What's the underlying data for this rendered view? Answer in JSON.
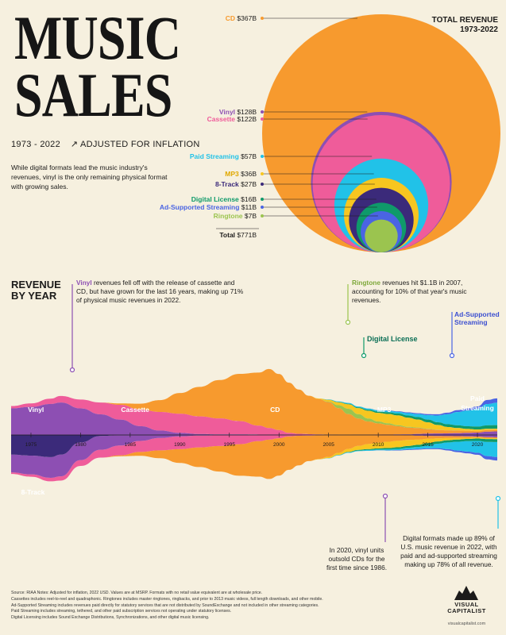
{
  "header": {
    "title_line1": "MUSIC",
    "title_line2": "SALES",
    "years": "1973 - 2022",
    "adjusted": "ADJUSTED FOR INFLATION",
    "intro": "While digital formats lead the music industry's revenues, vinyl is the only remaining physical format with growing sales."
  },
  "total_revenue": {
    "title_line1": "TOTAL REVENUE",
    "title_line2": "1973-2022"
  },
  "colors": {
    "background": "#f6f0df",
    "cd": "#f79a2e",
    "vinyl": "#8d4fb3",
    "cassette": "#ef5c9a",
    "paid_streaming": "#21c2e8",
    "mp3": "#f7c620",
    "eight_track": "#3b2a7a",
    "digital_license": "#0f9a6a",
    "ad_supported": "#4a64e3",
    "ringtone": "#9bc44f"
  },
  "chart_data": [
    {
      "type": "bubble",
      "title": "TOTAL REVENUE 1973-2022",
      "unit": "B",
      "series": [
        {
          "name": "CD",
          "label": "$367B",
          "value": 367
        },
        {
          "name": "Vinyl",
          "label": "$128B",
          "value": 128
        },
        {
          "name": "Cassette",
          "label": "$122B",
          "value": 122
        },
        {
          "name": "Paid Streaming",
          "label": "$57B",
          "value": 57
        },
        {
          "name": "MP3",
          "label": "$36B",
          "value": 36
        },
        {
          "name": "8-Track",
          "label": "$27B",
          "value": 27
        },
        {
          "name": "Digital License",
          "label": "$16B",
          "value": 16
        },
        {
          "name": "Ad-Supported Streaming",
          "label": "$11B",
          "value": 11
        },
        {
          "name": "Ringtone",
          "label": "$7B",
          "value": 7
        }
      ],
      "total": {
        "name": "Total",
        "label": "$771B",
        "value": 771
      }
    },
    {
      "type": "area",
      "title": "REVENUE BY YEAR",
      "x": [
        1973,
        1975,
        1977,
        1978,
        1980,
        1982,
        1984,
        1986,
        1988,
        1990,
        1992,
        1994,
        1996,
        1998,
        1999,
        2000,
        2001,
        2002,
        2003,
        2004,
        2005,
        2006,
        2007,
        2008,
        2009,
        2010,
        2011,
        2012,
        2013,
        2014,
        2015,
        2016,
        2017,
        2018,
        2019,
        2020,
        2021,
        2022
      ],
      "xticks": [
        "1975",
        "1980",
        "1985",
        "1990",
        "1995",
        "2000",
        "2005",
        "2010",
        "2015",
        "2020"
      ],
      "series": [
        {
          "name": "Vinyl",
          "values": [
            9,
            9.5,
            10.5,
            11,
            9,
            7,
            5.2,
            3,
            1.5,
            0.7,
            0.3,
            0.2,
            0.2,
            0.15,
            0.15,
            0.15,
            0.1,
            0.1,
            0.08,
            0.08,
            0.06,
            0.05,
            0.04,
            0.06,
            0.07,
            0.1,
            0.12,
            0.17,
            0.2,
            0.35,
            0.45,
            0.5,
            0.55,
            0.6,
            0.7,
            0.8,
            1.1,
            1.2
          ]
        },
        {
          "name": "8-Track",
          "values": [
            4,
            4.2,
            4.5,
            4,
            1.5,
            0.2,
            0.05,
            0,
            0,
            0,
            0,
            0,
            0,
            0,
            0,
            0,
            0,
            0,
            0,
            0,
            0,
            0,
            0,
            0,
            0,
            0,
            0,
            0,
            0,
            0,
            0,
            0,
            0,
            0,
            0,
            0,
            0,
            0
          ]
        },
        {
          "name": "Cassette",
          "values": [
            0.8,
            1.2,
            1.8,
            2.2,
            3,
            4,
            5,
            5.6,
            6.3,
            6.5,
            6,
            5.4,
            4.5,
            3,
            2.2,
            1.5,
            0.6,
            0.3,
            0.2,
            0.1,
            0.05,
            0.02,
            0.01,
            0,
            0,
            0,
            0,
            0,
            0,
            0,
            0,
            0,
            0,
            0,
            0,
            0,
            0,
            0
          ]
        },
        {
          "name": "CD",
          "values": [
            0,
            0,
            0,
            0,
            0,
            0,
            0.5,
            2,
            4,
            7,
            10,
            13,
            16,
            18,
            20,
            19,
            17,
            15,
            13,
            12,
            11,
            9,
            7,
            5.5,
            4.5,
            3.8,
            3.3,
            2.8,
            2.3,
            2,
            1.5,
            1.2,
            1,
            0.9,
            0.7,
            0.5,
            0.55,
            0.5
          ]
        },
        {
          "name": "Ringtone",
          "values": [
            0,
            0,
            0,
            0,
            0,
            0,
            0,
            0,
            0,
            0,
            0,
            0,
            0,
            0,
            0,
            0,
            0,
            0,
            0,
            0,
            0.1,
            0.6,
            1.1,
            0.9,
            0.6,
            0.4,
            0.3,
            0.2,
            0.15,
            0.1,
            0.08,
            0.05,
            0.03,
            0.03,
            0.02,
            0.02,
            0.02,
            0.02
          ]
        },
        {
          "name": "MP3",
          "values": [
            0,
            0,
            0,
            0,
            0,
            0,
            0,
            0,
            0,
            0,
            0,
            0,
            0,
            0,
            0,
            0,
            0,
            0,
            0,
            0.2,
            0.6,
            1,
            1.5,
            2,
            2.6,
            2.9,
            3.2,
            3.3,
            3.1,
            2.7,
            2.2,
            1.6,
            1.1,
            0.8,
            0.6,
            0.5,
            0.4,
            0.4
          ]
        },
        {
          "name": "Digital License",
          "values": [
            0,
            0,
            0,
            0,
            0,
            0,
            0,
            0,
            0,
            0,
            0,
            0,
            0,
            0,
            0,
            0,
            0,
            0,
            0,
            0,
            0.05,
            0.1,
            0.2,
            0.3,
            0.4,
            0.5,
            0.6,
            0.7,
            0.8,
            0.9,
            1,
            1,
            1,
            1,
            1,
            1.1,
            1.3,
            1.3
          ]
        },
        {
          "name": "Paid Streaming",
          "values": [
            0,
            0,
            0,
            0,
            0,
            0,
            0,
            0,
            0,
            0,
            0,
            0,
            0,
            0,
            0,
            0,
            0,
            0,
            0,
            0,
            0.1,
            0.2,
            0.3,
            0.3,
            0.4,
            0.4,
            0.5,
            0.6,
            0.8,
            1,
            1.5,
            2.3,
            3.4,
            4.5,
            5.3,
            6,
            7.2,
            7.6
          ]
        },
        {
          "name": "Ad-Supported Streaming",
          "values": [
            0,
            0,
            0,
            0,
            0,
            0,
            0,
            0,
            0,
            0,
            0,
            0,
            0,
            0,
            0,
            0,
            0,
            0,
            0,
            0,
            0,
            0,
            0,
            0,
            0.05,
            0.1,
            0.15,
            0.2,
            0.3,
            0.35,
            0.4,
            0.45,
            0.6,
            0.7,
            0.8,
            0.9,
            1.5,
            1.6
          ]
        }
      ]
    }
  ],
  "section": {
    "rev_by_year_1": "REVENUE",
    "rev_by_year_2": "BY YEAR"
  },
  "stream_labels": {
    "vinyl": "Vinyl",
    "cassette": "Cassette",
    "cd": "CD",
    "mp3": "MP3",
    "paid": "Paid",
    "streaming": "Streaming",
    "eight_track": "8-Track"
  },
  "annotations": {
    "vinyl_bold": "Vinyl",
    "vinyl_text": " revenues fell off with the release of cassette and CD, but have grown for the last 16 years, making up 71% of physical music revenues in 2022.",
    "ringtone_bold": "Ringtone",
    "ringtone_text": " revenues hit $1.1B in 2007, accounting for 10% of that year's music revenues.",
    "digital_license": "Digital License",
    "ad_supported": "Ad-Supported Streaming",
    "vinyl2": "In 2020, vinyl units outsold CDs for the first time since 1986.",
    "digital2": "Digital formats made up 89% of U.S. music revenue in 2022, with paid and ad-supported streaming making up 78% of all revenue."
  },
  "footer": {
    "line1": "Source: RIAA Notes: Adjusted for inflation, 2022 USD. Values are at MSRP. Formats with no retail value equivalent are at wholesale price.",
    "line2": "Cassettes includes reel-to-reel and quadraphonic. Ringtones includes master ringtones, ringbacks, and prior to 2013 music videos, full length downloads, and other mobile.",
    "line3": "Ad-Supported Streaming includes revenues paid directly for statutory services that are not distributed by SoundExchange and not included in other streaming categories.",
    "line4": "Paid Streaming includes streaming, tethered, and other paid subscription services not operating under statutory licenses.",
    "line5": "Digital Licensing includes Sound Exchange Distributions, Synchronizations, and other digital music licensing."
  },
  "brand": {
    "name_line1": "VISUAL",
    "name_line2": "CAPITALIST",
    "url": "visualcapitalist.com"
  }
}
